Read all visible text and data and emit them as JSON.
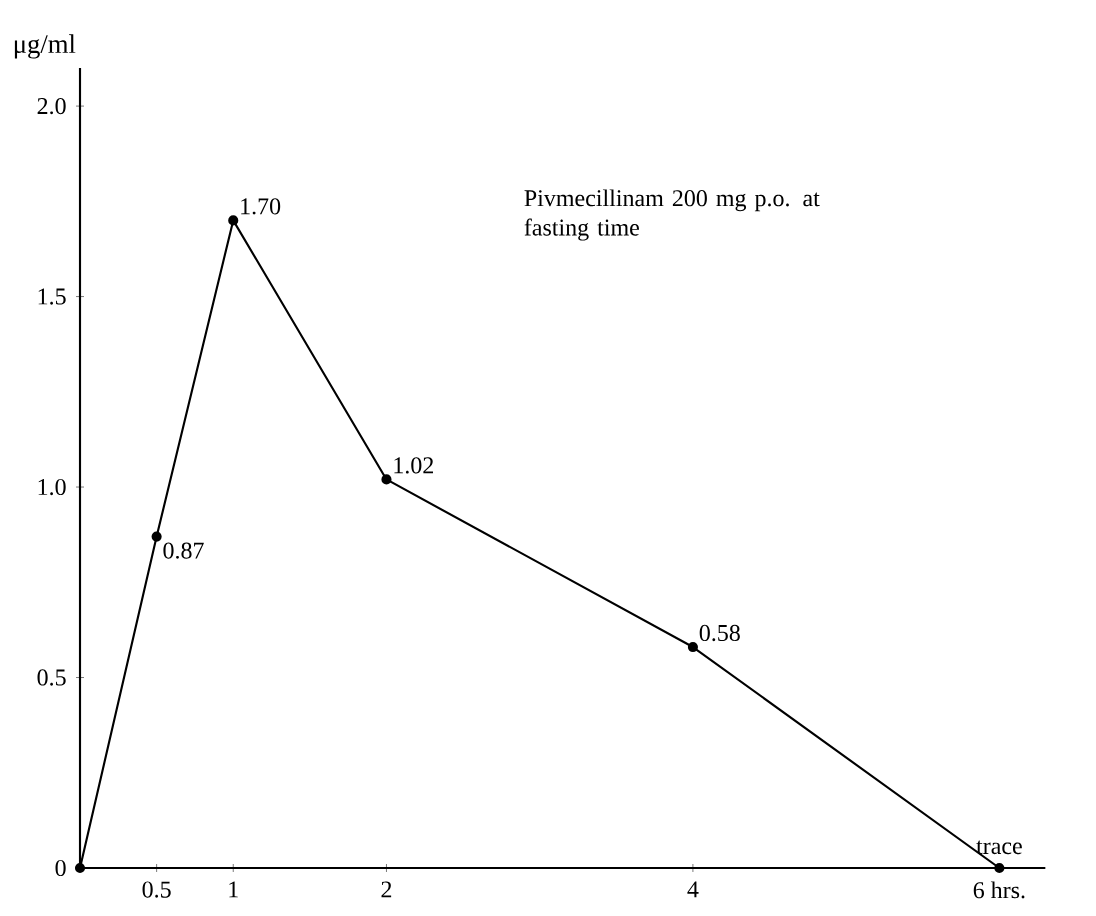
{
  "chart_data": {
    "type": "line",
    "ylabel": "μg/ml",
    "annotations": [
      "Pivmecillinam 200 mg p.o. at fasting time"
    ],
    "x": [
      0,
      0.5,
      1,
      2,
      4,
      6
    ],
    "values": [
      0,
      0.87,
      1.7,
      1.02,
      0.58,
      0
    ],
    "value_labels": [
      null,
      "0.87",
      "1.70",
      "1.02",
      "0.58",
      "trace"
    ],
    "color": "#000000",
    "marker": "circle",
    "line_style": "solid",
    "grid": false,
    "xlim": [
      0,
      6.3
    ],
    "ylim": [
      0,
      2.1
    ],
    "xticks": [
      0.5,
      1,
      2,
      4,
      {
        "value": 6,
        "label": "6 hrs."
      }
    ],
    "yticks": [
      0,
      0.5,
      {
        "value": 1.0,
        "label": "1.0"
      },
      1.5,
      {
        "value": 2.0,
        "label": "2.0"
      }
    ]
  }
}
